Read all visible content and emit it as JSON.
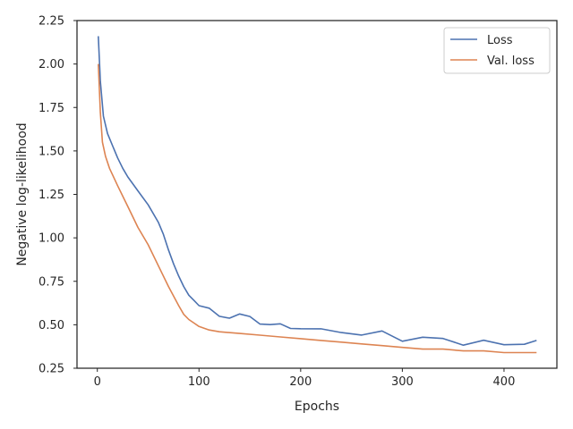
{
  "chart_data": {
    "type": "line",
    "title": "",
    "xlabel": "Epochs",
    "ylabel": "Negative log-likelihood",
    "xlim": [
      -20,
      452
    ],
    "ylim": [
      0.25,
      2.25
    ],
    "xticks": [
      0,
      100,
      200,
      300,
      400
    ],
    "yticks": [
      0.25,
      0.5,
      0.75,
      1.0,
      1.25,
      1.5,
      1.75,
      2.0,
      2.25
    ],
    "ytick_labels": [
      "0.25",
      "0.50",
      "0.75",
      "1.00",
      "1.25",
      "1.50",
      "1.75",
      "2.00",
      "2.25"
    ],
    "grid": false,
    "legend_position": "top-right",
    "series": [
      {
        "name": "Loss",
        "color": "#4c72b0",
        "x": [
          1,
          3,
          6,
          10,
          15,
          20,
          25,
          30,
          40,
          50,
          60,
          65,
          70,
          75,
          80,
          85,
          90,
          95,
          100,
          110,
          120,
          130,
          140,
          150,
          160,
          170,
          180,
          190,
          200,
          220,
          240,
          260,
          280,
          300,
          320,
          340,
          360,
          380,
          400,
          420,
          432
        ],
        "y": [
          2.16,
          1.9,
          1.7,
          1.6,
          1.53,
          1.46,
          1.4,
          1.35,
          1.27,
          1.19,
          1.09,
          1.02,
          0.93,
          0.85,
          0.78,
          0.72,
          0.67,
          0.64,
          0.62,
          0.59,
          0.56,
          0.55,
          0.54,
          0.53,
          0.52,
          0.51,
          0.5,
          0.49,
          0.48,
          0.47,
          0.46,
          0.45,
          0.44,
          0.43,
          0.42,
          0.41,
          0.4,
          0.4,
          0.39,
          0.38,
          0.39
        ]
      },
      {
        "name": "Val. loss",
        "color": "#dd8452",
        "x": [
          1,
          3,
          5,
          8,
          12,
          20,
          30,
          40,
          50,
          60,
          70,
          80,
          85,
          90,
          95,
          100,
          110,
          120,
          140,
          160,
          180,
          200,
          220,
          240,
          260,
          280,
          300,
          320,
          340,
          360,
          380,
          400,
          420,
          432
        ],
        "y": [
          2.0,
          1.72,
          1.55,
          1.47,
          1.4,
          1.3,
          1.18,
          1.06,
          0.96,
          0.84,
          0.72,
          0.61,
          0.56,
          0.53,
          0.51,
          0.49,
          0.47,
          0.46,
          0.45,
          0.44,
          0.43,
          0.42,
          0.41,
          0.4,
          0.39,
          0.38,
          0.37,
          0.36,
          0.36,
          0.35,
          0.35,
          0.34,
          0.34,
          0.34
        ]
      }
    ]
  }
}
